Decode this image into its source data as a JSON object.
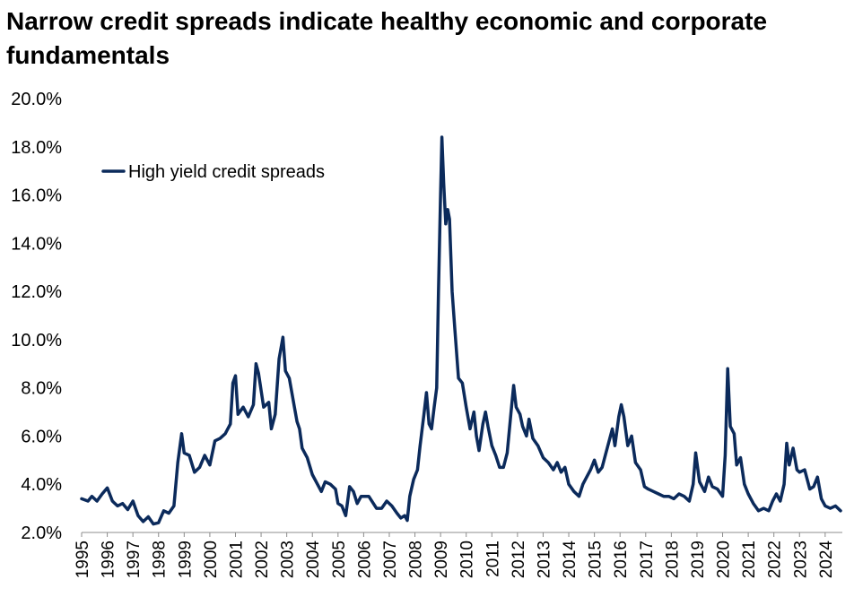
{
  "chart_data": {
    "type": "line",
    "title": "Narrow credit spreads indicate healthy economic and corporate fundamentals",
    "xlabel": "",
    "ylabel": "",
    "ylim": [
      2.0,
      20.0
    ],
    "yticks": [
      "2.0%",
      "4.0%",
      "6.0%",
      "8.0%",
      "10.0%",
      "12.0%",
      "14.0%",
      "16.0%",
      "18.0%",
      "20.0%"
    ],
    "xticks": [
      "1995",
      "1996",
      "1997",
      "1998",
      "1999",
      "2000",
      "2001",
      "2002",
      "2003",
      "2004",
      "2005",
      "2006",
      "2007",
      "2008",
      "2009",
      "2010",
      "2011",
      "2012",
      "2013",
      "2014",
      "2015",
      "2016",
      "2017",
      "2018",
      "2019",
      "2020",
      "2021",
      "2022",
      "2023",
      "2024"
    ],
    "grid": false,
    "legend": "top-left",
    "series": [
      {
        "name": "High yield credit spreads",
        "color": "#0b2a5b",
        "points": [
          [
            1995.0,
            3.4
          ],
          [
            1995.25,
            3.3
          ],
          [
            1995.4,
            3.5
          ],
          [
            1995.6,
            3.3
          ],
          [
            1995.8,
            3.6
          ],
          [
            1996.0,
            3.85
          ],
          [
            1996.2,
            3.3
          ],
          [
            1996.4,
            3.1
          ],
          [
            1996.6,
            3.2
          ],
          [
            1996.8,
            2.95
          ],
          [
            1997.0,
            3.3
          ],
          [
            1997.2,
            2.7
          ],
          [
            1997.4,
            2.45
          ],
          [
            1997.6,
            2.65
          ],
          [
            1997.8,
            2.35
          ],
          [
            1998.0,
            2.4
          ],
          [
            1998.2,
            2.9
          ],
          [
            1998.4,
            2.8
          ],
          [
            1998.6,
            3.1
          ],
          [
            1998.75,
            4.9
          ],
          [
            1998.9,
            6.1
          ],
          [
            1999.0,
            5.3
          ],
          [
            1999.2,
            5.2
          ],
          [
            1999.4,
            4.5
          ],
          [
            1999.6,
            4.7
          ],
          [
            1999.8,
            5.2
          ],
          [
            2000.0,
            4.8
          ],
          [
            2000.2,
            5.8
          ],
          [
            2000.4,
            5.9
          ],
          [
            2000.6,
            6.1
          ],
          [
            2000.8,
            6.5
          ],
          [
            2000.9,
            8.2
          ],
          [
            2001.0,
            8.5
          ],
          [
            2001.1,
            6.9
          ],
          [
            2001.3,
            7.2
          ],
          [
            2001.5,
            6.8
          ],
          [
            2001.7,
            7.3
          ],
          [
            2001.8,
            9.0
          ],
          [
            2001.9,
            8.6
          ],
          [
            2002.1,
            7.2
          ],
          [
            2002.3,
            7.4
          ],
          [
            2002.4,
            6.3
          ],
          [
            2002.55,
            6.9
          ],
          [
            2002.7,
            9.2
          ],
          [
            2002.85,
            10.1
          ],
          [
            2002.95,
            8.7
          ],
          [
            2003.1,
            8.4
          ],
          [
            2003.3,
            7.2
          ],
          [
            2003.4,
            6.6
          ],
          [
            2003.5,
            6.3
          ],
          [
            2003.6,
            5.5
          ],
          [
            2003.8,
            5.1
          ],
          [
            2004.0,
            4.4
          ],
          [
            2004.2,
            4.0
          ],
          [
            2004.35,
            3.7
          ],
          [
            2004.5,
            4.1
          ],
          [
            2004.7,
            4.0
          ],
          [
            2004.9,
            3.8
          ],
          [
            2005.0,
            3.2
          ],
          [
            2005.15,
            3.1
          ],
          [
            2005.3,
            2.7
          ],
          [
            2005.45,
            3.9
          ],
          [
            2005.6,
            3.7
          ],
          [
            2005.75,
            3.2
          ],
          [
            2005.9,
            3.5
          ],
          [
            2006.2,
            3.5
          ],
          [
            2006.5,
            3.0
          ],
          [
            2006.7,
            3.0
          ],
          [
            2006.9,
            3.3
          ],
          [
            2007.1,
            3.1
          ],
          [
            2007.3,
            2.8
          ],
          [
            2007.45,
            2.6
          ],
          [
            2007.6,
            2.7
          ],
          [
            2007.7,
            2.5
          ],
          [
            2007.8,
            3.5
          ],
          [
            2007.95,
            4.2
          ],
          [
            2008.1,
            4.6
          ],
          [
            2008.2,
            5.6
          ],
          [
            2008.35,
            6.9
          ],
          [
            2008.45,
            7.8
          ],
          [
            2008.55,
            6.5
          ],
          [
            2008.65,
            6.3
          ],
          [
            2008.75,
            7.2
          ],
          [
            2008.85,
            8.0
          ],
          [
            2008.92,
            12.0
          ],
          [
            2009.0,
            16.0
          ],
          [
            2009.05,
            18.4
          ],
          [
            2009.12,
            16.5
          ],
          [
            2009.2,
            14.8
          ],
          [
            2009.28,
            15.4
          ],
          [
            2009.35,
            15.0
          ],
          [
            2009.45,
            12.0
          ],
          [
            2009.55,
            10.5
          ],
          [
            2009.7,
            8.4
          ],
          [
            2009.85,
            8.2
          ],
          [
            2010.0,
            7.2
          ],
          [
            2010.15,
            6.3
          ],
          [
            2010.3,
            7.0
          ],
          [
            2010.4,
            6.0
          ],
          [
            2010.5,
            5.4
          ],
          [
            2010.65,
            6.5
          ],
          [
            2010.75,
            7.0
          ],
          [
            2010.85,
            6.4
          ],
          [
            2011.0,
            5.6
          ],
          [
            2011.15,
            5.2
          ],
          [
            2011.3,
            4.7
          ],
          [
            2011.45,
            4.7
          ],
          [
            2011.6,
            5.3
          ],
          [
            2011.75,
            7.0
          ],
          [
            2011.85,
            8.1
          ],
          [
            2011.95,
            7.2
          ],
          [
            2012.1,
            6.9
          ],
          [
            2012.2,
            6.4
          ],
          [
            2012.35,
            6.0
          ],
          [
            2012.45,
            6.7
          ],
          [
            2012.6,
            5.9
          ],
          [
            2012.8,
            5.6
          ],
          [
            2013.0,
            5.1
          ],
          [
            2013.2,
            4.9
          ],
          [
            2013.4,
            4.6
          ],
          [
            2013.55,
            4.9
          ],
          [
            2013.7,
            4.5
          ],
          [
            2013.85,
            4.7
          ],
          [
            2014.0,
            4.0
          ],
          [
            2014.2,
            3.7
          ],
          [
            2014.4,
            3.5
          ],
          [
            2014.55,
            4.0
          ],
          [
            2014.7,
            4.3
          ],
          [
            2014.85,
            4.6
          ],
          [
            2015.0,
            5.0
          ],
          [
            2015.15,
            4.5
          ],
          [
            2015.3,
            4.7
          ],
          [
            2015.5,
            5.5
          ],
          [
            2015.7,
            6.3
          ],
          [
            2015.8,
            5.6
          ],
          [
            2015.95,
            6.8
          ],
          [
            2016.05,
            7.3
          ],
          [
            2016.15,
            6.8
          ],
          [
            2016.3,
            5.6
          ],
          [
            2016.45,
            6.0
          ],
          [
            2016.6,
            4.9
          ],
          [
            2016.8,
            4.6
          ],
          [
            2016.95,
            3.9
          ],
          [
            2017.1,
            3.8
          ],
          [
            2017.3,
            3.7
          ],
          [
            2017.5,
            3.6
          ],
          [
            2017.7,
            3.5
          ],
          [
            2017.9,
            3.5
          ],
          [
            2018.1,
            3.4
          ],
          [
            2018.3,
            3.6
          ],
          [
            2018.5,
            3.5
          ],
          [
            2018.7,
            3.3
          ],
          [
            2018.85,
            4.0
          ],
          [
            2018.95,
            5.3
          ],
          [
            2019.1,
            4.1
          ],
          [
            2019.3,
            3.7
          ],
          [
            2019.45,
            4.3
          ],
          [
            2019.6,
            3.9
          ],
          [
            2019.8,
            3.8
          ],
          [
            2020.0,
            3.5
          ],
          [
            2020.1,
            5.2
          ],
          [
            2020.2,
            8.8
          ],
          [
            2020.3,
            6.4
          ],
          [
            2020.45,
            6.1
          ],
          [
            2020.55,
            4.8
          ],
          [
            2020.7,
            5.1
          ],
          [
            2020.85,
            4.0
          ],
          [
            2021.0,
            3.6
          ],
          [
            2021.2,
            3.2
          ],
          [
            2021.4,
            2.9
          ],
          [
            2021.6,
            3.0
          ],
          [
            2021.8,
            2.9
          ],
          [
            2021.95,
            3.3
          ],
          [
            2022.1,
            3.6
          ],
          [
            2022.25,
            3.3
          ],
          [
            2022.4,
            4.0
          ],
          [
            2022.5,
            5.7
          ],
          [
            2022.6,
            4.8
          ],
          [
            2022.75,
            5.5
          ],
          [
            2022.9,
            4.6
          ],
          [
            2023.0,
            4.5
          ],
          [
            2023.2,
            4.6
          ],
          [
            2023.4,
            3.8
          ],
          [
            2023.55,
            3.9
          ],
          [
            2023.7,
            4.3
          ],
          [
            2023.85,
            3.4
          ],
          [
            2024.0,
            3.1
          ],
          [
            2024.2,
            3.0
          ],
          [
            2024.4,
            3.1
          ],
          [
            2024.6,
            2.9
          ]
        ]
      }
    ]
  }
}
